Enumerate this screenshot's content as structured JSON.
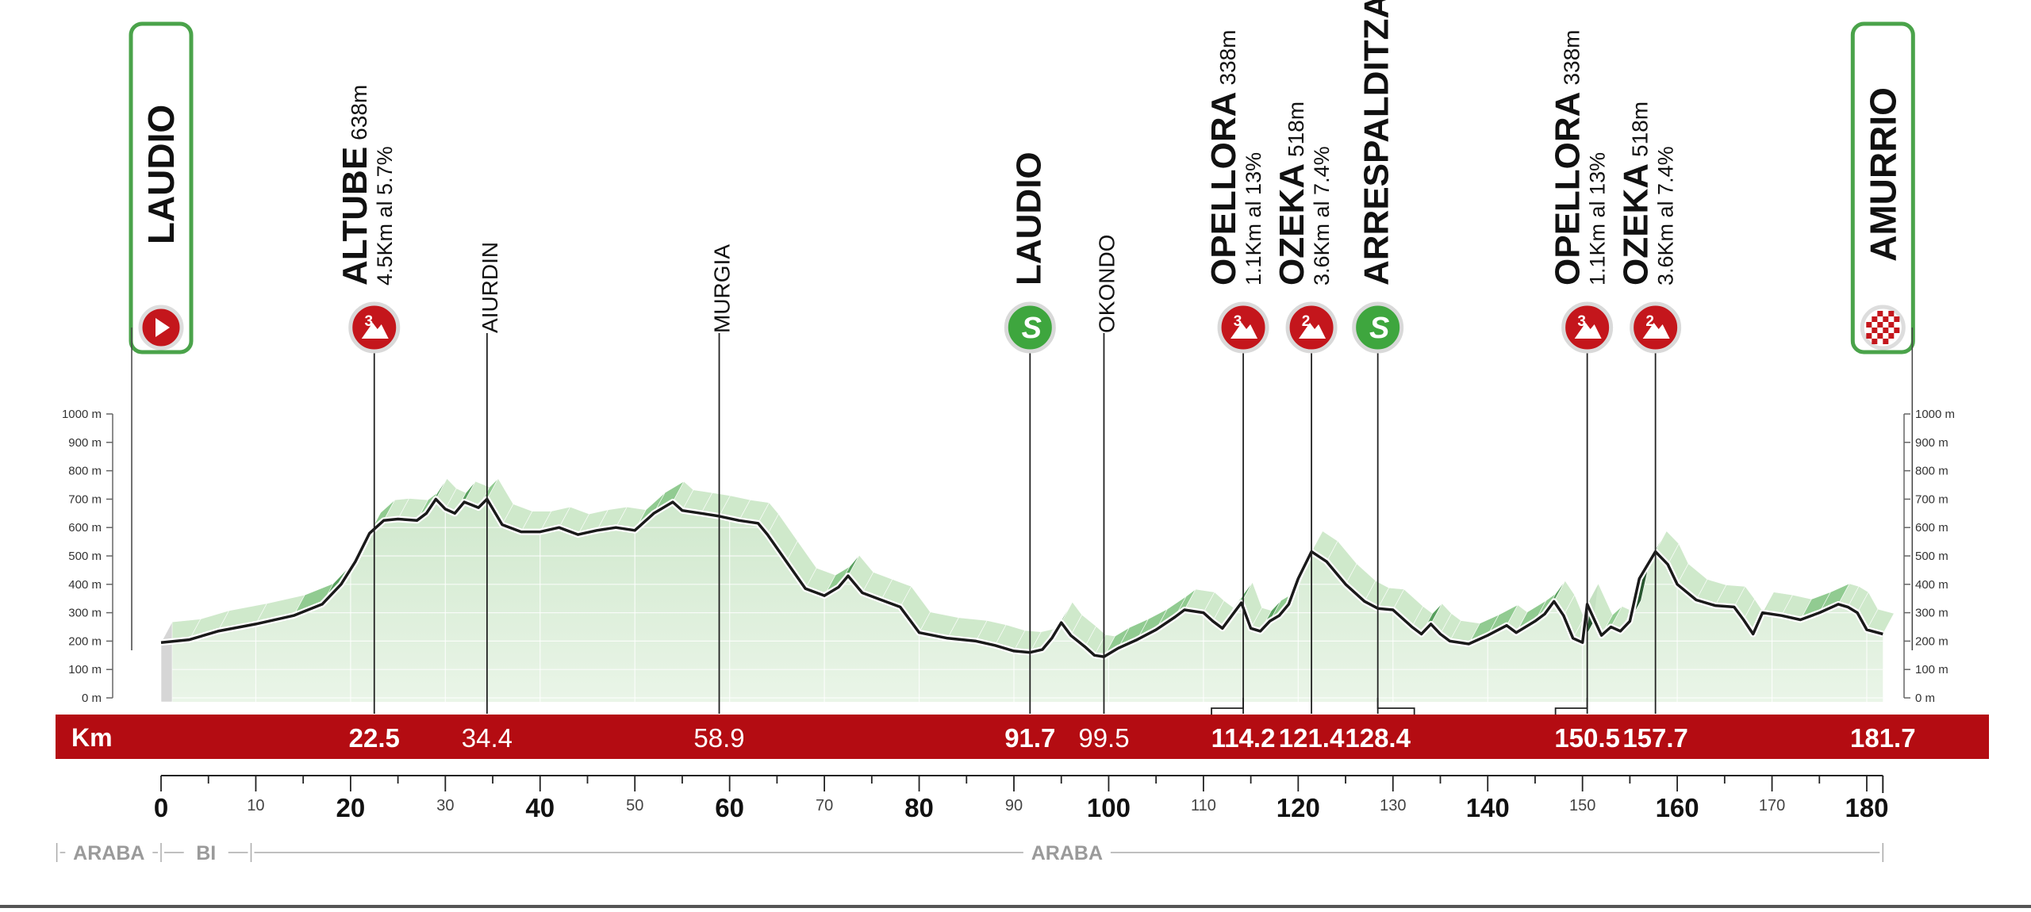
{
  "chart_data": {
    "type": "area",
    "title": "",
    "xlabel": "Km",
    "ylabel": "",
    "xlim": [
      0,
      181.7
    ],
    "ylim": [
      0,
      1000
    ],
    "x_ticks_major": [
      0,
      20,
      40,
      60,
      80,
      100,
      120,
      140,
      160,
      180
    ],
    "x_ticks_minor": [
      10,
      30,
      50,
      70,
      90,
      110,
      130,
      150,
      170
    ],
    "y_ticks": [
      {
        "value": 0,
        "label": "0 m"
      },
      {
        "value": 100,
        "label": "100 m"
      },
      {
        "value": 200,
        "label": "200 m"
      },
      {
        "value": 300,
        "label": "300 m"
      },
      {
        "value": 400,
        "label": "400 m"
      },
      {
        "value": 500,
        "label": "500 m"
      },
      {
        "value": 600,
        "label": "600 m"
      },
      {
        "value": 700,
        "label": "700 m"
      },
      {
        "value": 800,
        "label": "800 m"
      },
      {
        "value": 900,
        "label": "900 m"
      },
      {
        "value": 1000,
        "label": "1000 m"
      }
    ],
    "profile": [
      [
        0,
        195
      ],
      [
        3,
        205
      ],
      [
        6,
        235
      ],
      [
        10,
        260
      ],
      [
        14,
        290
      ],
      [
        17,
        330
      ],
      [
        19,
        400
      ],
      [
        20.5,
        480
      ],
      [
        22,
        580
      ],
      [
        23.5,
        625
      ],
      [
        25,
        630
      ],
      [
        27,
        625
      ],
      [
        28,
        650
      ],
      [
        29,
        700
      ],
      [
        30,
        665
      ],
      [
        31,
        650
      ],
      [
        32,
        690
      ],
      [
        33.5,
        670
      ],
      [
        34.4,
        700
      ],
      [
        36,
        610
      ],
      [
        38,
        585
      ],
      [
        40,
        585
      ],
      [
        42,
        600
      ],
      [
        44,
        575
      ],
      [
        46,
        590
      ],
      [
        48,
        600
      ],
      [
        50,
        590
      ],
      [
        52,
        650
      ],
      [
        54,
        690
      ],
      [
        55,
        660
      ],
      [
        57,
        650
      ],
      [
        58.9,
        640
      ],
      [
        61,
        625
      ],
      [
        63,
        615
      ],
      [
        64,
        575
      ],
      [
        66,
        480
      ],
      [
        68,
        385
      ],
      [
        70,
        360
      ],
      [
        71.5,
        390
      ],
      [
        72.5,
        430
      ],
      [
        74,
        370
      ],
      [
        76,
        345
      ],
      [
        78,
        320
      ],
      [
        80,
        230
      ],
      [
        83,
        210
      ],
      [
        86,
        200
      ],
      [
        88,
        185
      ],
      [
        90,
        165
      ],
      [
        91.7,
        160
      ],
      [
        93,
        170
      ],
      [
        94,
        210
      ],
      [
        95,
        265
      ],
      [
        96,
        220
      ],
      [
        97.5,
        180
      ],
      [
        98.5,
        150
      ],
      [
        99.5,
        145
      ],
      [
        101,
        175
      ],
      [
        103,
        205
      ],
      [
        105,
        240
      ],
      [
        107,
        285
      ],
      [
        108,
        310
      ],
      [
        110,
        300
      ],
      [
        111,
        270
      ],
      [
        112,
        245
      ],
      [
        113,
        290
      ],
      [
        114,
        335
      ],
      [
        115,
        245
      ],
      [
        116,
        235
      ],
      [
        117,
        270
      ],
      [
        118,
        290
      ],
      [
        119,
        330
      ],
      [
        120,
        420
      ],
      [
        121.4,
        515
      ],
      [
        123,
        480
      ],
      [
        125,
        400
      ],
      [
        127,
        340
      ],
      [
        128.4,
        315
      ],
      [
        130,
        310
      ],
      [
        132,
        250
      ],
      [
        133,
        225
      ],
      [
        134,
        260
      ],
      [
        135,
        225
      ],
      [
        136,
        200
      ],
      [
        138,
        190
      ],
      [
        140,
        220
      ],
      [
        142,
        255
      ],
      [
        143,
        230
      ],
      [
        145,
        270
      ],
      [
        146,
        295
      ],
      [
        147,
        340
      ],
      [
        148,
        290
      ],
      [
        149,
        210
      ],
      [
        150,
        195
      ],
      [
        150.5,
        330
      ],
      [
        152,
        220
      ],
      [
        153,
        250
      ],
      [
        154,
        235
      ],
      [
        155,
        270
      ],
      [
        156,
        420
      ],
      [
        157.7,
        515
      ],
      [
        159,
        470
      ],
      [
        160,
        400
      ],
      [
        162,
        345
      ],
      [
        164,
        325
      ],
      [
        166,
        320
      ],
      [
        167,
        275
      ],
      [
        168,
        225
      ],
      [
        169,
        300
      ],
      [
        171,
        290
      ],
      [
        173,
        275
      ],
      [
        175,
        300
      ],
      [
        177,
        330
      ],
      [
        178,
        320
      ],
      [
        179,
        300
      ],
      [
        180,
        240
      ],
      [
        181.7,
        225
      ]
    ]
  },
  "markers": [
    {
      "km": 0,
      "name": "LAUDIO",
      "style": "start-banner",
      "icon": "start-arrow-icon"
    },
    {
      "km": 22.5,
      "name": "ALTUBE",
      "alt": "638m",
      "detail": "4.5Km al 5.7%",
      "icon": "mountain-cat3-icon",
      "badge": "3"
    },
    {
      "km": 34.4,
      "name": "AIURDIN",
      "style": "place"
    },
    {
      "km": 58.9,
      "name": "MURGIA",
      "style": "place"
    },
    {
      "km": 91.7,
      "name": "LAUDIO",
      "style": "sprint",
      "icon": "sprint-icon",
      "badge": "S"
    },
    {
      "km": 99.5,
      "name": "OKONDO",
      "style": "place"
    },
    {
      "km": 114.2,
      "name": "OPELLORA",
      "alt": "338m",
      "detail": "1.1Km al 13%",
      "icon": "mountain-cat3-icon",
      "badge": "3"
    },
    {
      "km": 121.4,
      "name": "OZEKA",
      "alt": "518m",
      "detail": "3.6Km al 7.4%",
      "icon": "mountain-cat2-icon",
      "badge": "2"
    },
    {
      "km": 128.4,
      "name": "ARRESPALDITZA",
      "style": "sprint",
      "icon": "sprint-icon",
      "badge": "S"
    },
    {
      "km": 150.5,
      "name": "OPELLORA",
      "alt": "338m",
      "detail": "1.1Km al 13%",
      "icon": "mountain-cat3-icon",
      "badge": "3"
    },
    {
      "km": 157.7,
      "name": "OZEKA",
      "alt": "518m",
      "detail": "3.6Km al 7.4%",
      "icon": "mountain-cat2-icon",
      "badge": "2"
    },
    {
      "km": 181.7,
      "name": "AMURRIO",
      "style": "finish-banner",
      "icon": "finish-flag-icon"
    }
  ],
  "km_band": {
    "label": "Km",
    "values": [
      {
        "km": 22.5,
        "text": "22.5",
        "bold": true
      },
      {
        "km": 34.4,
        "text": "34.4",
        "bold": false
      },
      {
        "km": 58.9,
        "text": "58.9",
        "bold": false
      },
      {
        "km": 91.7,
        "text": "91.7",
        "bold": true
      },
      {
        "km": 99.5,
        "text": "99.5",
        "bold": false
      },
      {
        "km": 114.2,
        "text": "114.2",
        "bold": true
      },
      {
        "km": 121.4,
        "text": "121.4",
        "bold": true
      },
      {
        "km": 128.4,
        "text": "128.4",
        "bold": true
      },
      {
        "km": 150.5,
        "text": "150.5",
        "bold": true
      },
      {
        "km": 157.7,
        "text": "157.7",
        "bold": true
      },
      {
        "km": 181.7,
        "text": "181.7",
        "bold": true
      }
    ]
  },
  "regions": [
    {
      "label": "ARABA",
      "from": -11,
      "to": 0
    },
    {
      "label": "BI",
      "from": 0,
      "to": 9.5
    },
    {
      "label": "ARABA",
      "from": 9.5,
      "to": 181.7
    }
  ],
  "colors": {
    "band": "#b40c12",
    "banner_border": "#4aa34a",
    "mountain_badge": "#c4161c",
    "sprint_badge": "#3ea63e",
    "fill_light": "#eaf5e8",
    "fill_dark": "#2e6e35",
    "line": "#1a1a1a"
  }
}
